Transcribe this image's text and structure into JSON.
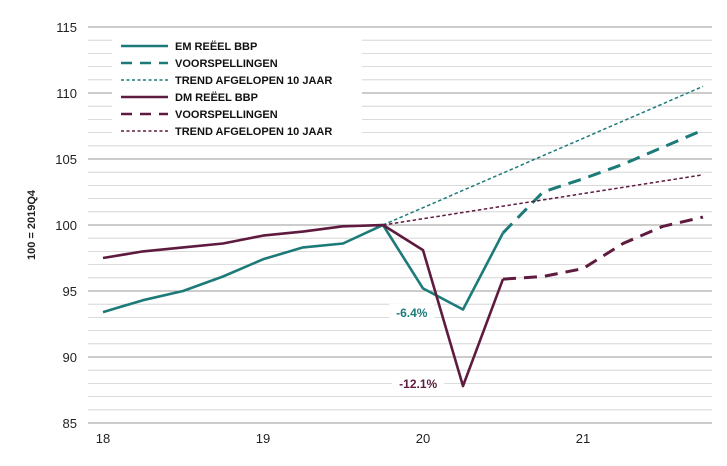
{
  "chart_data": {
    "type": "line",
    "ylabel": "100 = 2019Q4",
    "xlabel": "",
    "ylim": [
      85,
      115
    ],
    "xlim": [
      17.95,
      21.8
    ],
    "grid": true,
    "legend_position": "top-left",
    "yticks": [
      85,
      90,
      95,
      100,
      105,
      110,
      115
    ],
    "xticks": [
      18,
      19,
      20,
      21
    ],
    "colors": {
      "em": "#1c7b78",
      "dm": "#5e1b3f"
    },
    "series": [
      {
        "name": "EM REËEL BBP",
        "color": "#1c7b78",
        "style": "solid",
        "x": [
          18,
          18.25,
          18.5,
          18.75,
          19,
          19.25,
          19.5,
          19.75,
          20,
          20.25,
          20.5
        ],
        "y": [
          93.4,
          94.3,
          95.0,
          96.1,
          97.4,
          98.3,
          98.6,
          100.0,
          95.2,
          93.6,
          99.4
        ]
      },
      {
        "name": "VOORSPELLINGEN",
        "color": "#1c7b78",
        "style": "dashed",
        "x": [
          20.5,
          20.75,
          21,
          21.25,
          21.5,
          21.75
        ],
        "y": [
          99.4,
          102.5,
          103.5,
          104.6,
          105.9,
          107.2
        ]
      },
      {
        "name": "TREND AFGELOPEN 10 JAAR",
        "color": "#1c7b78",
        "style": "dotted",
        "x": [
          19.75,
          21.75
        ],
        "y": [
          100.0,
          110.5
        ]
      },
      {
        "name": "DM REËEL BBP",
        "color": "#5e1b3f",
        "style": "solid",
        "x": [
          18,
          18.25,
          18.5,
          18.75,
          19,
          19.25,
          19.5,
          19.75,
          20,
          20.25,
          20.5
        ],
        "y": [
          97.5,
          98.0,
          98.3,
          98.6,
          99.2,
          99.5,
          99.9,
          100.0,
          98.1,
          87.8,
          95.9
        ]
      },
      {
        "name": "VOORSPELLINGEN",
        "color": "#5e1b3f",
        "style": "dashed",
        "x": [
          20.5,
          20.75,
          21,
          21.25,
          21.5,
          21.75
        ],
        "y": [
          95.9,
          96.1,
          96.7,
          98.6,
          99.9,
          100.6
        ]
      },
      {
        "name": "TREND AFGELOPEN 10 JAAR",
        "color": "#5e1b3f",
        "style": "dotted",
        "x": [
          19.75,
          21.75
        ],
        "y": [
          100.0,
          103.8
        ]
      }
    ],
    "annotations": [
      {
        "text": "-6.4%",
        "x": 19.93,
        "y": 93.2,
        "color": "#1c7b78"
      },
      {
        "text": "-12.1%",
        "x": 19.97,
        "y": 87.8,
        "color": "#5e1b3f"
      }
    ]
  }
}
